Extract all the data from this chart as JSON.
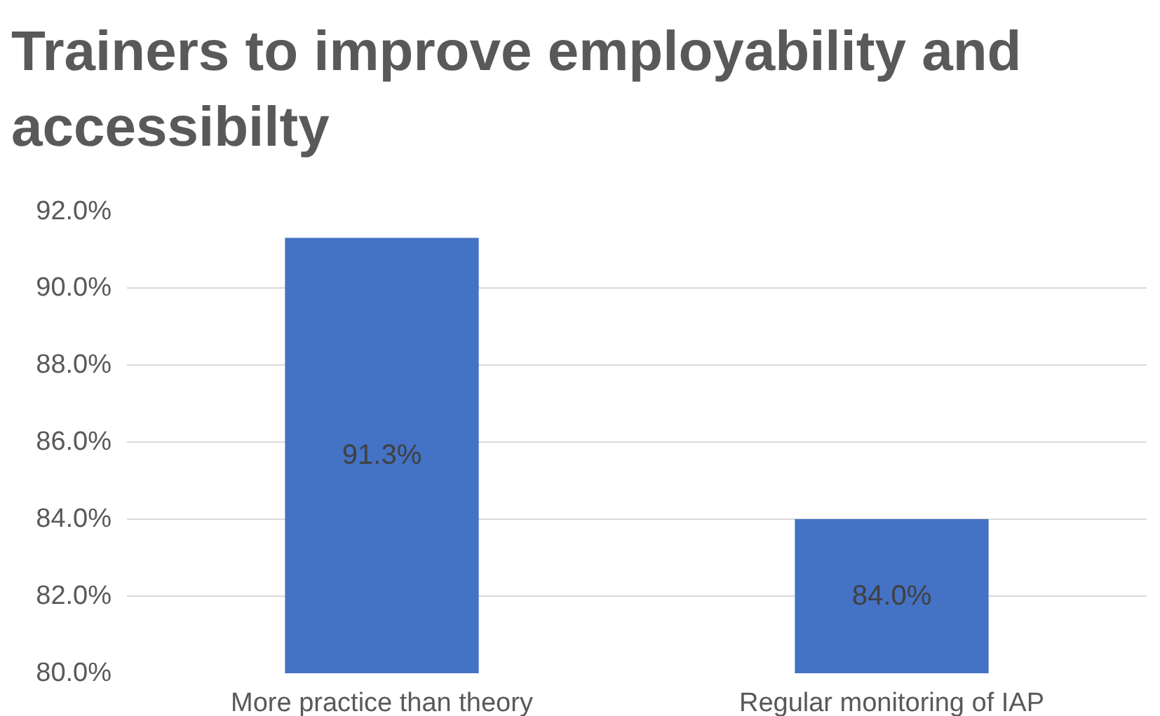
{
  "chart_data": {
    "type": "bar",
    "title": "Trainers to improve employability and accessibilty",
    "categories": [
      "More practice than theory",
      "Regular monitoring of IAP"
    ],
    "values": [
      91.3,
      84.0
    ],
    "value_labels": [
      "91.3%",
      "84.0%"
    ],
    "color": "#4472c4",
    "ylim": [
      80,
      92
    ],
    "yticks": [
      {
        "value": 80,
        "label": "80.0%"
      },
      {
        "value": 82,
        "label": "82.0%"
      },
      {
        "value": 84,
        "label": "84.0%"
      },
      {
        "value": 86,
        "label": "86.0%"
      },
      {
        "value": 88,
        "label": "88.0%"
      },
      {
        "value": 90,
        "label": "90.0%"
      },
      {
        "value": 92,
        "label": "92.0%"
      }
    ],
    "grid": "y"
  }
}
